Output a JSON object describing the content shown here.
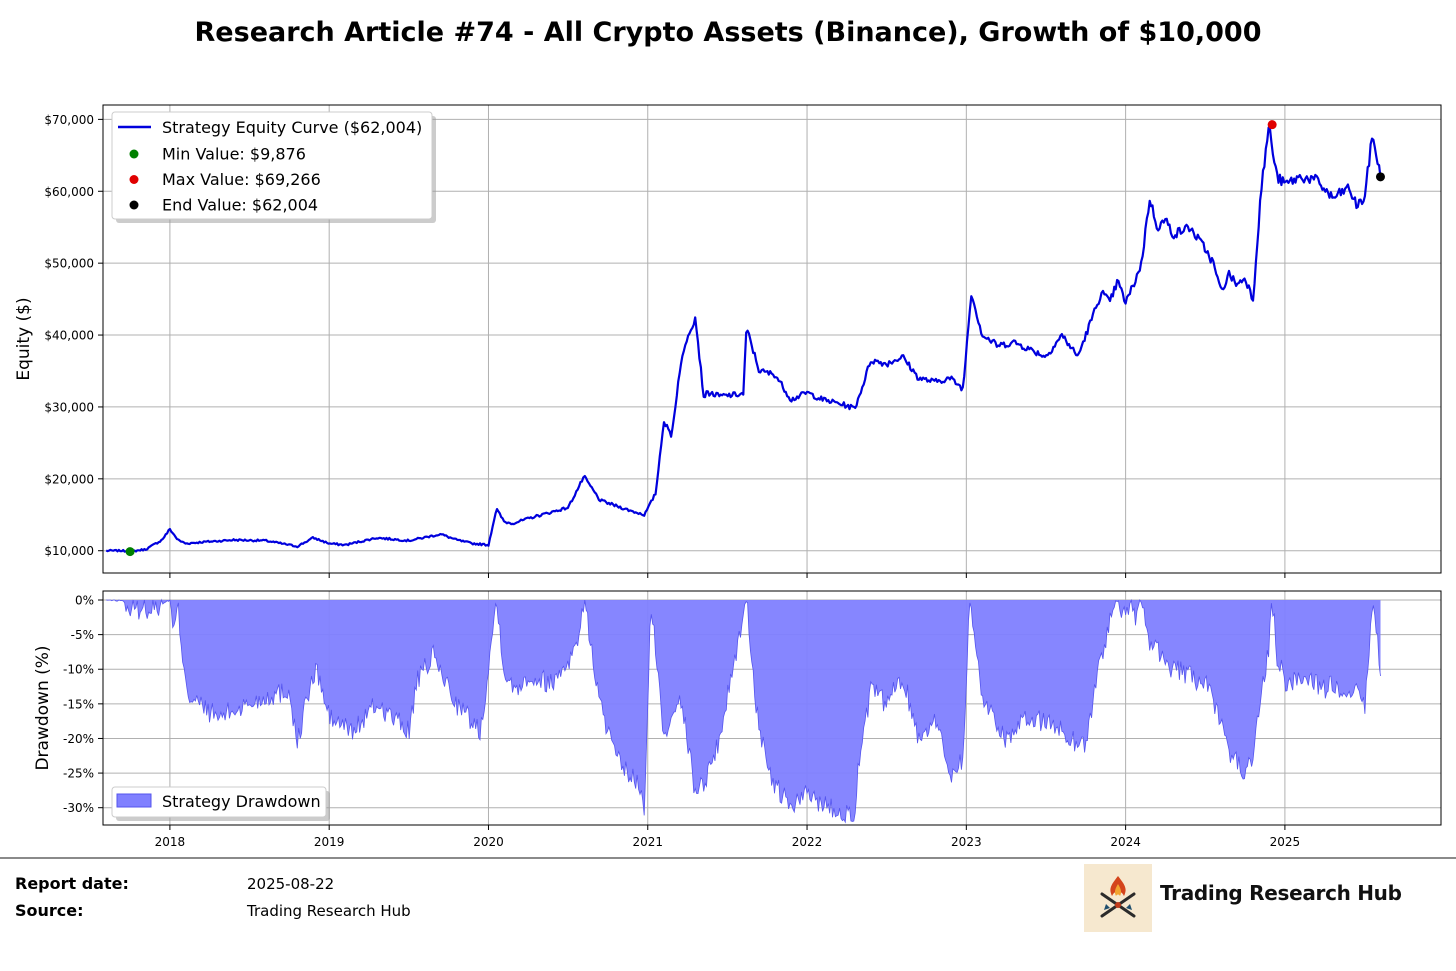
{
  "title": "Research Article #74 - All Crypto Assets (Binance), Growth of $10,000",
  "footer": {
    "report_date_label": "Report date:",
    "report_date_value": "2025-08-22",
    "source_label": "Source:",
    "source_value": "Trading Research Hub",
    "brand_name": "Trading Research Hub"
  },
  "chart_data": [
    {
      "type": "line",
      "ylabel": "Equity ($)",
      "xlabel": "",
      "x_ticks": [
        "2018",
        "2019",
        "2020",
        "2021",
        "2022",
        "2023",
        "2024",
        "2025"
      ],
      "xlim": [
        2017.58,
        2025.98
      ],
      "y_ticks": [
        "$10,000",
        "$20,000",
        "$30,000",
        "$40,000",
        "$50,000",
        "$60,000",
        "$70,000"
      ],
      "y_tick_values": [
        10000,
        20000,
        30000,
        40000,
        50000,
        60000,
        70000
      ],
      "ylim": [
        6900,
        72000
      ],
      "grid": true,
      "legend_position": "top-left",
      "series": [
        {
          "name": "Strategy Equity Curve ($62,004)",
          "color": "#0000dd",
          "x": [
            2017.6,
            2017.7,
            2017.75,
            2017.85,
            2017.95,
            2018.0,
            2018.05,
            2018.1,
            2018.2,
            2018.4,
            2018.6,
            2018.8,
            2018.9,
            2019.0,
            2019.1,
            2019.3,
            2019.5,
            2019.7,
            2019.8,
            2019.9,
            2020.0,
            2020.05,
            2020.1,
            2020.15,
            2020.3,
            2020.5,
            2020.6,
            2020.7,
            2020.9,
            2020.98,
            2021.05,
            2021.1,
            2021.15,
            2021.2,
            2021.25,
            2021.3,
            2021.35,
            2021.38,
            2021.45,
            2021.6,
            2021.62,
            2021.7,
            2021.8,
            2021.9,
            2022.0,
            2022.1,
            2022.2,
            2022.3,
            2022.35,
            2022.4,
            2022.5,
            2022.6,
            2022.7,
            2022.8,
            2022.9,
            2022.98,
            2023.03,
            2023.1,
            2023.2,
            2023.3,
            2023.4,
            2023.5,
            2023.6,
            2023.7,
            2023.8,
            2023.85,
            2023.9,
            2023.95,
            2024.0,
            2024.05,
            2024.1,
            2024.15,
            2024.2,
            2024.25,
            2024.3,
            2024.4,
            2024.5,
            2024.55,
            2024.6,
            2024.65,
            2024.7,
            2024.75,
            2024.8,
            2024.85,
            2024.9,
            2024.92,
            2024.95,
            2025.0,
            2025.1,
            2025.2,
            2025.3,
            2025.4,
            2025.45,
            2025.5,
            2025.55,
            2025.6
          ],
          "y": [
            10000,
            10000,
            9876,
            10200,
            11500,
            13000,
            11500,
            11000,
            11200,
            11500,
            11400,
            10600,
            11800,
            11000,
            10800,
            11800,
            11400,
            12300,
            11500,
            11000,
            10800,
            15800,
            14000,
            13800,
            14800,
            16000,
            20300,
            17000,
            15500,
            15000,
            18000,
            28000,
            26000,
            35000,
            40000,
            42500,
            31500,
            32000,
            31500,
            31800,
            41000,
            35000,
            34500,
            31000,
            32000,
            31000,
            30500,
            29800,
            33000,
            36500,
            36000,
            37000,
            34000,
            33500,
            34000,
            32500,
            46000,
            40000,
            38500,
            39000,
            38000,
            37000,
            40000,
            37000,
            43000,
            46000,
            44500,
            47500,
            44500,
            47000,
            50000,
            59000,
            55000,
            56000,
            54000,
            55000,
            52000,
            50000,
            46000,
            48500,
            47000,
            48000,
            45000,
            60000,
            69266,
            66000,
            62000,
            61000,
            62000,
            61500,
            59000,
            60500,
            58000,
            59000,
            68000,
            62004
          ]
        }
      ],
      "markers": [
        {
          "label": "Min Value: $9,876",
          "x": 2017.75,
          "y": 9876,
          "color": "#008000"
        },
        {
          "label": "Max Value: $69,266",
          "x": 2024.92,
          "y": 69266,
          "color": "#e00000"
        },
        {
          "label": "End Value: $62,004",
          "x": 2025.6,
          "y": 62004,
          "color": "#000000"
        }
      ]
    },
    {
      "type": "area",
      "ylabel": "Drawdown (%)",
      "xlabel": "",
      "x_ticks": [
        "2018",
        "2019",
        "2020",
        "2021",
        "2022",
        "2023",
        "2024",
        "2025"
      ],
      "xlim": [
        2017.58,
        2025.98
      ],
      "y_ticks": [
        "0%",
        "-5%",
        "-10%",
        "-15%",
        "-20%",
        "-25%",
        "-30%"
      ],
      "y_tick_values": [
        0,
        -5,
        -10,
        -15,
        -20,
        -25,
        -30
      ],
      "ylim": [
        -32.5,
        1.3
      ],
      "grid": true,
      "legend_position": "bottom-left",
      "series": [
        {
          "name": "Strategy Drawdown",
          "color": "#8080ff",
          "x": [
            2017.6,
            2017.7,
            2017.75,
            2017.9,
            2018.0,
            2018.02,
            2018.05,
            2018.08,
            2018.12,
            2018.3,
            2018.6,
            2018.75,
            2018.8,
            2018.85,
            2018.92,
            2019.0,
            2019.15,
            2019.3,
            2019.5,
            2019.55,
            2019.65,
            2019.8,
            2019.95,
            2020.05,
            2020.1,
            2020.15,
            2020.25,
            2020.4,
            2020.55,
            2020.6,
            2020.7,
            2020.8,
            2020.95,
            2020.98,
            2021.02,
            2021.1,
            2021.2,
            2021.3,
            2021.38,
            2021.45,
            2021.55,
            2021.62,
            2021.68,
            2021.75,
            2021.9,
            2022.0,
            2022.15,
            2022.3,
            2022.32,
            2022.4,
            2022.5,
            2022.6,
            2022.7,
            2022.8,
            2022.9,
            2022.98,
            2023.02,
            2023.1,
            2023.25,
            2023.4,
            2023.55,
            2023.65,
            2023.75,
            2023.82,
            2023.85,
            2023.9,
            2023.95,
            2024.0,
            2024.03,
            2024.06,
            2024.1,
            2024.15,
            2024.3,
            2024.5,
            2024.6,
            2024.65,
            2024.7,
            2024.75,
            2024.8,
            2024.85,
            2024.9,
            2024.92,
            2024.95,
            2025.0,
            2025.15,
            2025.25,
            2025.3,
            2025.38,
            2025.45,
            2025.5,
            2025.55,
            2025.6
          ],
          "y": [
            0,
            0,
            -1.5,
            -1,
            0,
            -5,
            -1,
            -8,
            -14,
            -17,
            -14,
            -13,
            -21,
            -15,
            -10,
            -17,
            -19,
            -15,
            -19,
            -12,
            -8,
            -15,
            -19,
            0,
            -10,
            -13,
            -11,
            -12,
            -7,
            0,
            -15,
            -23,
            -27,
            -31,
            0,
            -20,
            -13,
            -28,
            -25,
            -20,
            -8,
            0,
            -15,
            -25,
            -30,
            -28,
            -30,
            -31,
            -25,
            -13,
            -15,
            -11,
            -20,
            -17,
            -25,
            -23,
            0,
            -14,
            -20,
            -17,
            -18,
            -20,
            -21,
            -11,
            -8,
            -3,
            0,
            -3,
            0,
            -3,
            0,
            -6,
            -10,
            -12,
            -18,
            -22,
            -23,
            -26,
            -22,
            -14,
            -7,
            0,
            -8,
            -12,
            -11,
            -13,
            -12,
            -15,
            -13,
            -16,
            0,
            -10
          ]
        }
      ]
    }
  ]
}
